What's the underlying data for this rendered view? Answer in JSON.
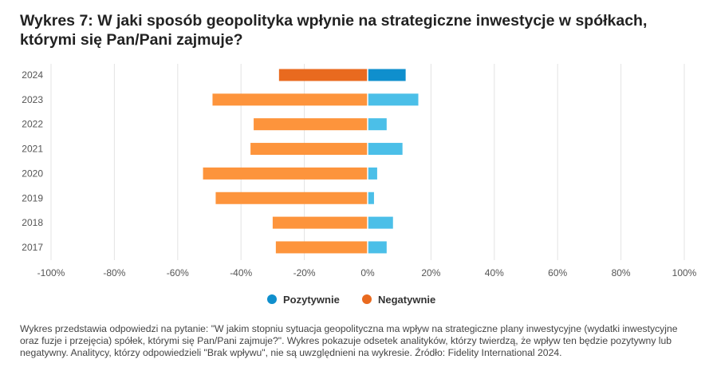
{
  "title": "Wykres 7: W jaki sposób geopolityka wpłynie na strategiczne inwestycje w spółkach, którymi się Pan/Pani zajmuje?",
  "footnote": "Wykres przedstawia odpowiedzi na pytanie: \"W jakim stopniu sytuacja geopolityczna ma wpływ na strategiczne plany inwestycyjne (wydatki inwestycyjne oraz fuzje i przejęcia) spółek, którymi się Pan/Pani zajmuje?\". Wykres pokazuje odsetek analityków, którzy twierdzą, że wpływ ten będzie pozytywny lub negatywny. Analitycy, którzy odpowiedzieli \"Brak wpływu\", nie są uwzględnieni na wykresie. Źródło: Fidelity International 2024.",
  "colors": {
    "positive": "#4bbfe8",
    "negative": "#fd943c",
    "positive_highlight": "#0f8fcd",
    "negative_highlight": "#e96a1f",
    "grid": "#e3e3e3"
  },
  "chart_data": {
    "type": "bar",
    "orientation": "horizontal",
    "layout": "diverging",
    "categories": [
      "2024",
      "2023",
      "2022",
      "2021",
      "2020",
      "2019",
      "2018",
      "2017"
    ],
    "highlight_category": "2024",
    "series": [
      {
        "name": "Pozytywnie",
        "values": [
          12,
          16,
          6,
          11,
          3,
          2,
          8,
          6
        ]
      },
      {
        "name": "Negatywnie",
        "values": [
          -28,
          -49,
          -36,
          -37,
          -52,
          -48,
          -30,
          -29
        ]
      }
    ],
    "xlim": [
      -100,
      100
    ],
    "xticks": [
      -100,
      -80,
      -60,
      -40,
      -20,
      0,
      20,
      40,
      60,
      80,
      100
    ],
    "xtick_labels": [
      "-100%",
      "-80%",
      "-60%",
      "-40%",
      "-20%",
      "0%",
      "20%",
      "40%",
      "60%",
      "80%",
      "100%"
    ],
    "grid": "vertical",
    "legend_position": "bottom"
  }
}
